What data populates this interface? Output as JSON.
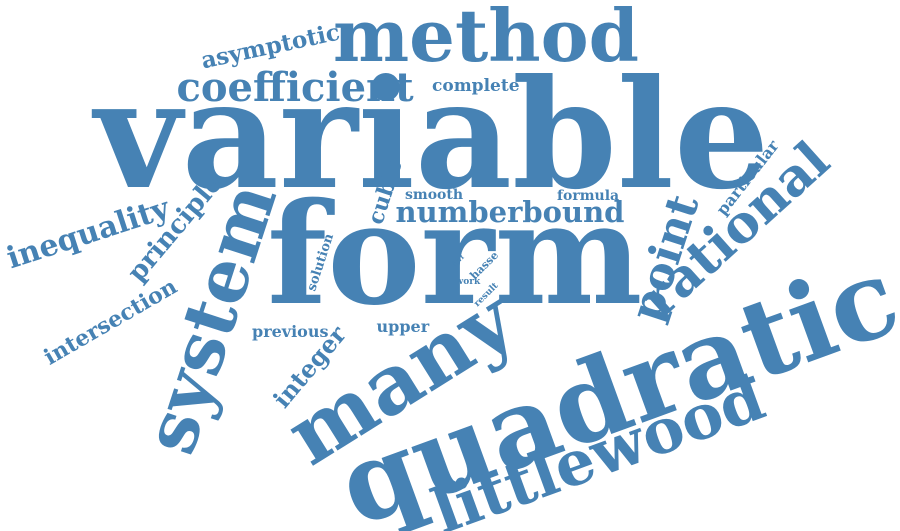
{
  "word_cloud": {
    "color": "#4682b4",
    "words": [
      {
        "text": "variable",
        "name": "word-variable"
      },
      {
        "text": "form",
        "name": "word-form"
      },
      {
        "text": "quadratic",
        "name": "word-quadratic"
      },
      {
        "text": "method",
        "name": "word-method"
      },
      {
        "text": "many",
        "name": "word-many"
      },
      {
        "text": "system",
        "name": "word-system"
      },
      {
        "text": "littlewood",
        "name": "word-littlewood"
      },
      {
        "text": "rational",
        "name": "word-rational"
      },
      {
        "text": "point",
        "name": "word-point"
      },
      {
        "text": "coefficient",
        "name": "word-coefficient"
      },
      {
        "text": "inequality",
        "name": "word-inequality"
      },
      {
        "text": "numberbound",
        "name": "word-numberbound"
      },
      {
        "text": "principle",
        "name": "word-principle"
      },
      {
        "text": "intersection",
        "name": "word-intersection"
      },
      {
        "text": "asymptotic",
        "name": "word-asymptotic"
      },
      {
        "text": "cubic",
        "name": "word-cubic"
      },
      {
        "text": "integer",
        "name": "word-integer"
      },
      {
        "text": "particular",
        "name": "word-particular"
      },
      {
        "text": "complete",
        "name": "word-complete"
      },
      {
        "text": "previous",
        "name": "word-previous"
      },
      {
        "text": "upper",
        "name": "word-upper"
      },
      {
        "text": "smooth",
        "name": "word-smooth"
      },
      {
        "text": "formula",
        "name": "word-formula"
      },
      {
        "text": "solution",
        "name": "word-solution"
      },
      {
        "text": "hasse",
        "name": "word-hasse"
      },
      {
        "text": "work",
        "name": "word-work"
      },
      {
        "text": "result",
        "name": "word-result"
      },
      {
        "text": "frvf",
        "name": "word-frvf"
      }
    ]
  }
}
